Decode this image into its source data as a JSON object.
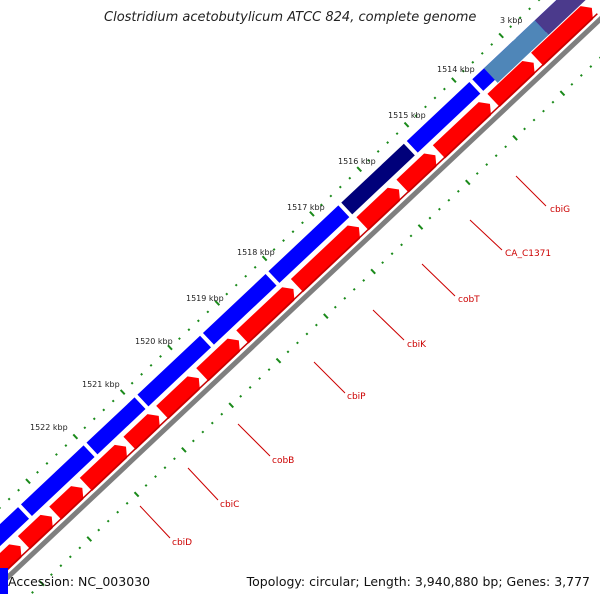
{
  "title": "Clostridium acetobutylicum ATCC 824, complete genome",
  "footer": {
    "accession": "Accession: NC_003030",
    "stats": "Topology: circular; Length: 3,940,880 bp; Genes: 3,777"
  },
  "tick_labels": [
    "3 kbp",
    "1514 kbp",
    "1515 kbp",
    "1516 kbp",
    "1517 kbp",
    "1518 kbp",
    "1519 kbp",
    "1520 kbp",
    "1521 kbp",
    "1522 kbp"
  ],
  "genes": [
    {
      "name": "cbiG",
      "strand": "-"
    },
    {
      "name": "CA_C1371",
      "strand": "-"
    },
    {
      "name": "cobT",
      "strand": "-"
    },
    {
      "name": "cbiK",
      "strand": "-"
    },
    {
      "name": "cbiP",
      "strand": "-"
    },
    {
      "name": "cobB",
      "strand": "-"
    },
    {
      "name": "cbiC",
      "strand": "-"
    },
    {
      "name": "cbiD",
      "strand": "-"
    }
  ],
  "colors": {
    "backbone": "#7f7f7f",
    "forward_genes": "#ff0000",
    "reverse_genes": "#0000ff",
    "highlight_dark": "#00007a",
    "highlight_light": "#4f86b8",
    "highlight_purple": "#4b3a8c",
    "ticks": "#1a8a1a",
    "gene_labels": "#cc0000"
  }
}
